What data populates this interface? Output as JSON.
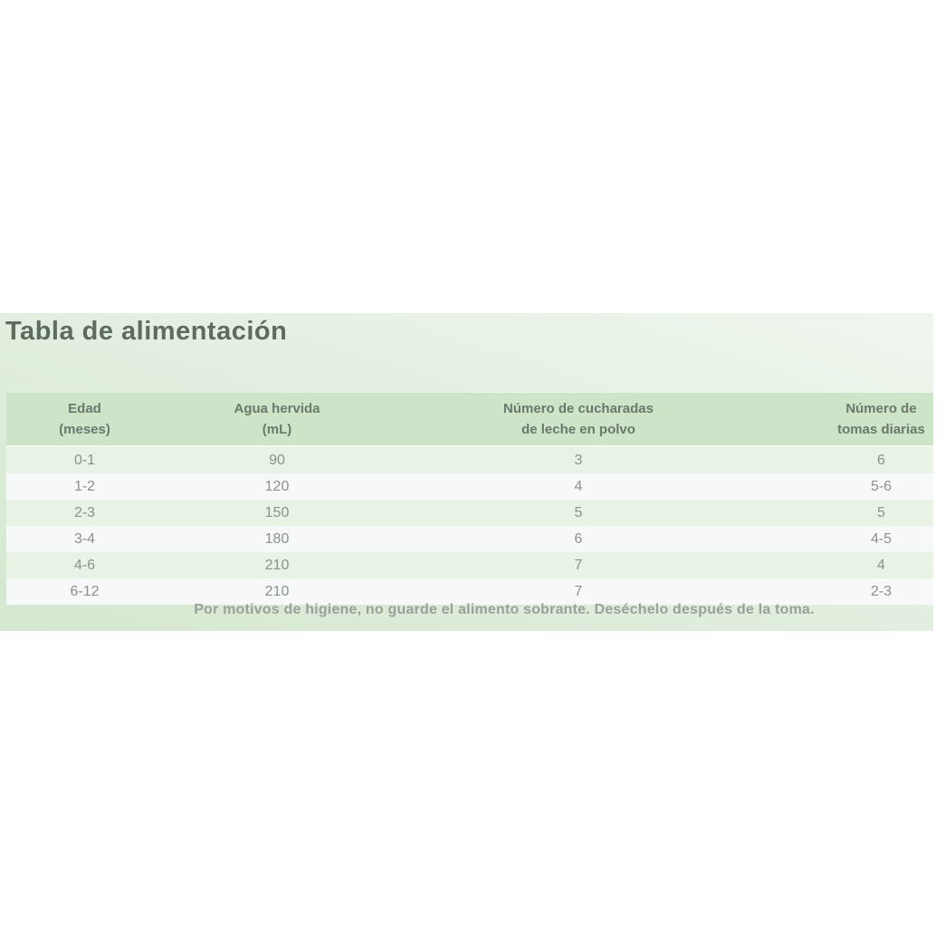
{
  "title": "Tabla de alimentación",
  "table": {
    "headers": [
      {
        "line1": "Edad",
        "line2": "(meses)"
      },
      {
        "line1": "Agua hervida",
        "line2": "(mL)"
      },
      {
        "line1": "Número de cucharadas",
        "line2": "de leche en polvo"
      },
      {
        "line1": "Número de",
        "line2": "tomas diarias"
      }
    ],
    "rows": [
      [
        "0-1",
        "90",
        "3",
        "6"
      ],
      [
        "1-2",
        "120",
        "4",
        "5-6"
      ],
      [
        "2-3",
        "150",
        "5",
        "5"
      ],
      [
        "3-4",
        "180",
        "6",
        "4-5"
      ],
      [
        "4-6",
        "210",
        "7",
        "4"
      ],
      [
        "6-12",
        "210",
        "7",
        "2-3"
      ]
    ]
  },
  "footer_note": "Por motivos de higiene, no guarde el alimento sobrante. Deséchelo después de la toma.",
  "colors": {
    "panel_gradient_start": "#d5e7d0",
    "panel_gradient_end": "#eff6ee",
    "header_row_bg": "#cde4c9",
    "row_odd_bg": "#e8f2e5",
    "row_even_bg": "#f7f9f8",
    "title_text": "#5e6c5e",
    "header_text": "#6b786b",
    "cell_text": "#8b918b",
    "footer_text": "#9aa19a"
  },
  "chart_data": {
    "type": "table",
    "title": "Tabla de alimentación",
    "columns": [
      "Edad (meses)",
      "Agua hervida (mL)",
      "Número de cucharadas de leche en polvo",
      "Número de tomas diarias"
    ],
    "rows": [
      [
        "0-1",
        90,
        3,
        "6"
      ],
      [
        "1-2",
        120,
        4,
        "5-6"
      ],
      [
        "2-3",
        150,
        5,
        "5"
      ],
      [
        "3-4",
        180,
        6,
        "4-5"
      ],
      [
        "4-6",
        210,
        7,
        "4"
      ],
      [
        "6-12",
        210,
        7,
        "2-3"
      ]
    ],
    "footnote": "Por motivos de higiene, no guarde el alimento sobrante. Deséchelo después de la toma."
  }
}
